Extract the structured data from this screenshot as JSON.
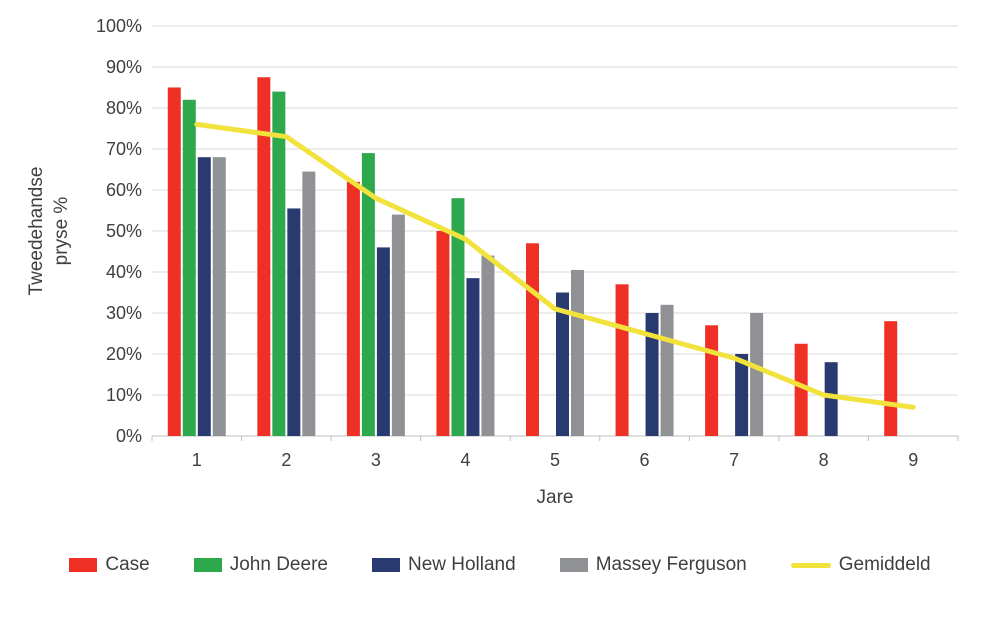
{
  "chart": {
    "y_axis_title_line1": "Tweedehandse",
    "y_axis_title_line2": "pryse %"
  },
  "chart_data": {
    "type": "combo-bar-line",
    "title": "",
    "xlabel": "Jare",
    "ylabel": "Tweedehandse pryse %",
    "categories": [
      "1",
      "2",
      "3",
      "4",
      "5",
      "6",
      "7",
      "8",
      "9"
    ],
    "bar_series": [
      {
        "name": "Case",
        "color": "#ee3124",
        "values": [
          85,
          87.5,
          62,
          50,
          47,
          37,
          27,
          22.5,
          28
        ]
      },
      {
        "name": "John Deere",
        "color": "#2ea84d",
        "values": [
          82,
          84,
          69,
          58,
          null,
          null,
          null,
          null,
          null
        ]
      },
      {
        "name": "New Holland",
        "color": "#283a70",
        "values": [
          68,
          55.5,
          46,
          38.5,
          35,
          30,
          20,
          18,
          null
        ]
      },
      {
        "name": "Massey Ferguson",
        "color": "#8f9194",
        "values": [
          68,
          64.5,
          54,
          44,
          40.5,
          32,
          30,
          null,
          null
        ]
      }
    ],
    "line_series": [
      {
        "name": "Gemiddeld",
        "color": "#f2e23c",
        "values": [
          76,
          73,
          58,
          48,
          31,
          25,
          19,
          10,
          7
        ]
      }
    ],
    "ylim": [
      0,
      100
    ],
    "y_tick_step": 10,
    "y_tick_suffix": "%",
    "grid": true,
    "gridline_color": "#d9d9d9",
    "axis_line_color": "#bfbfbf",
    "legend_position": "bottom"
  }
}
